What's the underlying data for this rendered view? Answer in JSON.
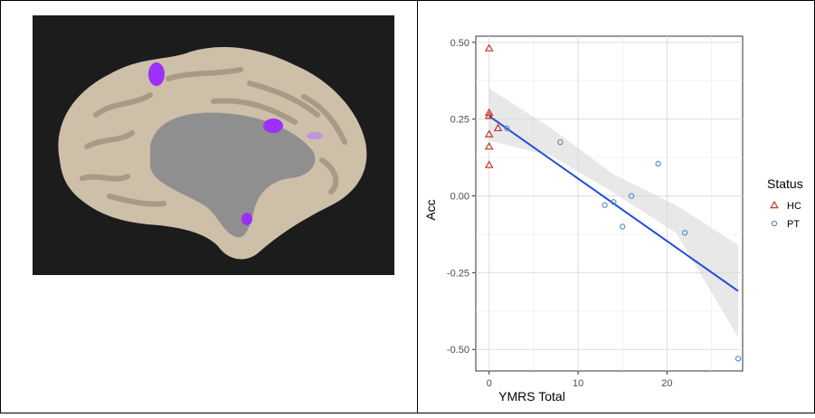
{
  "colors": {
    "hc": "#c0392b",
    "pt": "#4f86c6",
    "fit": "#1f4fd8",
    "band": "#d9d9d9",
    "grid": "#ebebeb",
    "brain_bg": "#1c1c1c",
    "cortex": "#cdbfa8",
    "sulci": "#a89a86",
    "activation": "#9b30ff"
  },
  "chart_data": {
    "type": "scatter",
    "xlabel": "YMRS Total",
    "ylabel": "Acc",
    "xlim": [
      -1.5,
      28.5
    ],
    "ylim": [
      -0.57,
      0.52
    ],
    "x_ticks": [
      0,
      10,
      20
    ],
    "x_tick_labels": [
      "0",
      "10",
      "20"
    ],
    "y_ticks": [
      0.5,
      0.25,
      0,
      -0.25,
      -0.5
    ],
    "y_tick_labels": [
      "0.50",
      "0.25",
      "0.00",
      "-0.25",
      "-0.50"
    ],
    "grid": true,
    "legend": {
      "title": "Status",
      "position": "right",
      "entries": [
        {
          "label": "HC",
          "marker": "triangle"
        },
        {
          "label": "PT",
          "marker": "circle"
        }
      ]
    },
    "series": [
      {
        "name": "HC",
        "marker": "triangle",
        "x": [
          0,
          0,
          0,
          0,
          0,
          0,
          1
        ],
        "y": [
          0.48,
          0.27,
          0.26,
          0.2,
          0.16,
          0.1,
          0.22
        ]
      },
      {
        "name": "PT",
        "marker": "circle",
        "x": [
          2,
          8,
          13,
          14,
          15,
          16,
          19,
          22,
          28
        ],
        "y": [
          0.22,
          0.175,
          -0.03,
          -0.02,
          -0.1,
          0.0,
          0.105,
          -0.12,
          -0.53
        ]
      }
    ],
    "fit_line": {
      "x": [
        0,
        28
      ],
      "y": [
        0.26,
        -0.31
      ]
    },
    "confidence_band": {
      "x": [
        0,
        7,
        14,
        21,
        28
      ],
      "lower": [
        0.18,
        0.13,
        0.01,
        -0.12,
        -0.46
      ],
      "upper": [
        0.35,
        0.22,
        0.07,
        -0.03,
        -0.16
      ]
    }
  }
}
